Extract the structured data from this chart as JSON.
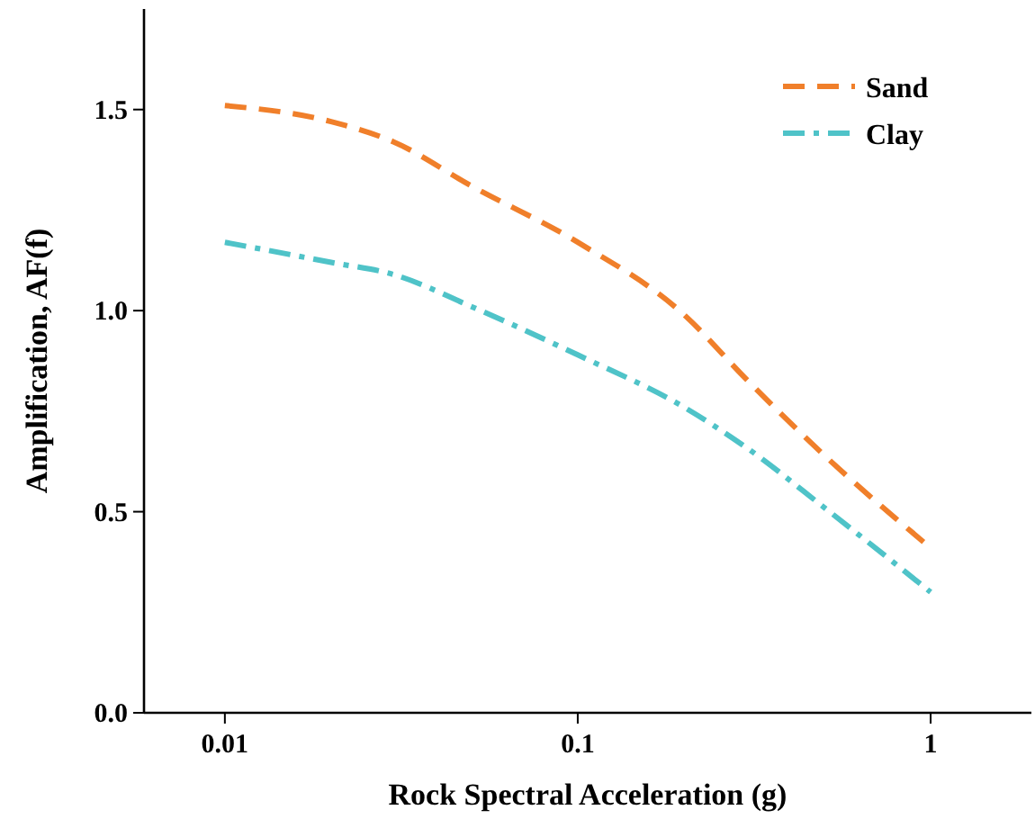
{
  "chart_data": {
    "type": "line",
    "xlabel": "Rock Spectral Acceleration (g)",
    "ylabel": "Amplification, AF(f)",
    "log": "x",
    "xlim": [
      0.0059,
      1.93
    ],
    "xticks": [
      0.01,
      0.1,
      1
    ],
    "ylim": [
      0,
      1.75
    ],
    "yticks": [
      {
        "value": 0,
        "label": "0.0"
      },
      {
        "value": 0.5,
        "label": "0.5"
      },
      {
        "value": 1,
        "label": "1.0"
      },
      {
        "value": 1.5,
        "label": "1.5"
      }
    ],
    "grid": false,
    "legend": "top right",
    "marker": "none",
    "x": [
      0.01,
      0.02,
      0.03,
      0.05,
      0.1,
      0.2,
      0.3,
      0.5,
      1
    ],
    "series": [
      {
        "name": "Sand",
        "color": "#f07f2a",
        "line_style": "dashed",
        "values": [
          1.51,
          1.47,
          1.42,
          1.31,
          1.17,
          0.99,
          0.83,
          0.64,
          0.41
        ]
      },
      {
        "name": "Clay",
        "color": "#4fc3c8",
        "line_style": "dashdot",
        "values": [
          1.17,
          1.12,
          1.09,
          1.01,
          0.89,
          0.76,
          0.66,
          0.51,
          0.3
        ]
      }
    ]
  }
}
